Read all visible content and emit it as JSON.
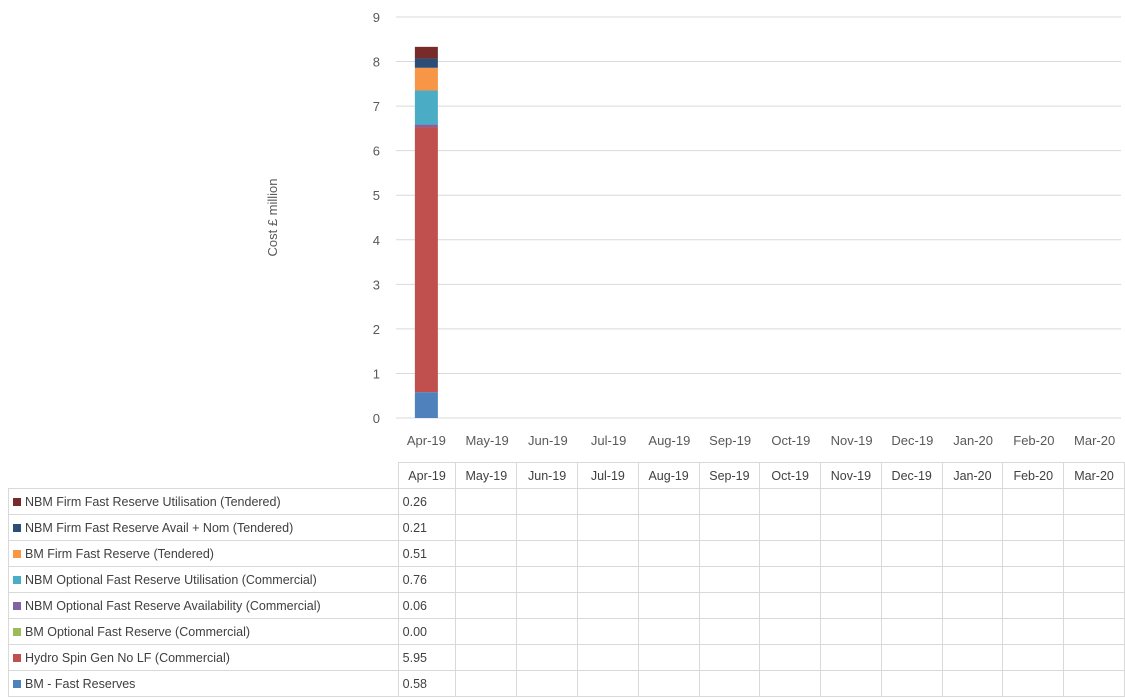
{
  "chart_data": {
    "type": "bar",
    "stacked": true,
    "title": "",
    "xlabel": "",
    "ylabel": "Cost £ million",
    "ylim": [
      0,
      9
    ],
    "yticks": [
      0,
      1,
      2,
      3,
      4,
      5,
      6,
      7,
      8,
      9
    ],
    "grid": true,
    "categories": [
      "Apr-19",
      "May-19",
      "Jun-19",
      "Jul-19",
      "Aug-19",
      "Sep-19",
      "Oct-19",
      "Nov-19",
      "Dec-19",
      "Jan-20",
      "Feb-20",
      "Mar-20"
    ],
    "series": [
      {
        "name": "BM - Fast Reserves",
        "color": "#4f81bd",
        "values": [
          0.58,
          null,
          null,
          null,
          null,
          null,
          null,
          null,
          null,
          null,
          null,
          null
        ],
        "labels": [
          "0.58",
          "",
          "",
          "",
          "",
          "",
          "",
          "",
          "",
          "",
          "",
          ""
        ]
      },
      {
        "name": "Hydro Spin Gen No LF (Commercial)",
        "color": "#c0504d",
        "values": [
          5.95,
          null,
          null,
          null,
          null,
          null,
          null,
          null,
          null,
          null,
          null,
          null
        ],
        "labels": [
          "5.95",
          "",
          "",
          "",
          "",
          "",
          "",
          "",
          "",
          "",
          "",
          ""
        ]
      },
      {
        "name": "BM Optional Fast Reserve (Commercial)",
        "color": "#9bbb59",
        "values": [
          0.0,
          null,
          null,
          null,
          null,
          null,
          null,
          null,
          null,
          null,
          null,
          null
        ],
        "labels": [
          "0.00",
          "",
          "",
          "",
          "",
          "",
          "",
          "",
          "",
          "",
          "",
          ""
        ]
      },
      {
        "name": "NBM Optional Fast Reserve Availability (Commercial)",
        "color": "#8064a2",
        "values": [
          0.06,
          null,
          null,
          null,
          null,
          null,
          null,
          null,
          null,
          null,
          null,
          null
        ],
        "labels": [
          "0.06",
          "",
          "",
          "",
          "",
          "",
          "",
          "",
          "",
          "",
          "",
          ""
        ]
      },
      {
        "name": "NBM Optional Fast Reserve Utilisation (Commercial)",
        "color": "#4bacc6",
        "values": [
          0.76,
          null,
          null,
          null,
          null,
          null,
          null,
          null,
          null,
          null,
          null,
          null
        ],
        "labels": [
          "0.76",
          "",
          "",
          "",
          "",
          "",
          "",
          "",
          "",
          "",
          "",
          ""
        ]
      },
      {
        "name": "BM Firm Fast Reserve (Tendered)",
        "color": "#f79646",
        "values": [
          0.51,
          null,
          null,
          null,
          null,
          null,
          null,
          null,
          null,
          null,
          null,
          null
        ],
        "labels": [
          "0.51",
          "",
          "",
          "",
          "",
          "",
          "",
          "",
          "",
          "",
          "",
          ""
        ]
      },
      {
        "name": "NBM Firm Fast Reserve Avail + Nom (Tendered)",
        "color": "#2c4d75",
        "values": [
          0.21,
          null,
          null,
          null,
          null,
          null,
          null,
          null,
          null,
          null,
          null,
          null
        ],
        "labels": [
          "0.21",
          "",
          "",
          "",
          "",
          "",
          "",
          "",
          "",
          "",
          "",
          ""
        ]
      },
      {
        "name": "NBM Firm Fast Reserve Utilisation (Tendered)",
        "color": "#772c2a",
        "values": [
          0.26,
          null,
          null,
          null,
          null,
          null,
          null,
          null,
          null,
          null,
          null,
          null
        ],
        "labels": [
          "0.26",
          "",
          "",
          "",
          "",
          "",
          "",
          "",
          "",
          "",
          "",
          ""
        ]
      }
    ]
  }
}
